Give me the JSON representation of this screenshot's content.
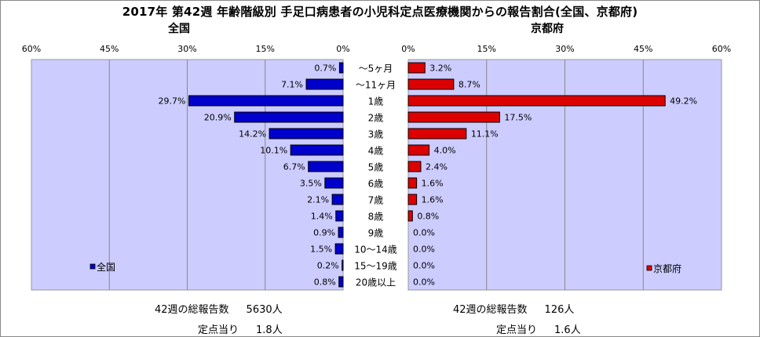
{
  "title": "2017年 第42週 年齢階級別 手足口病患者の小児科定点医療機関からの報告割合(全国、京都府)",
  "chart_data": [
    {
      "type": "bar",
      "orientation": "horizontal",
      "panel": "全国",
      "direction": "leftward",
      "xlim": [
        0,
        60
      ],
      "xticks": [
        "60%",
        "45%",
        "30%",
        "15%",
        "0%"
      ],
      "grid": true,
      "legend": "全国",
      "legend_position": "bottom-left",
      "color": "#0000cc",
      "categories": [
        "～5ヶ月",
        "～11ヶ月",
        "1歳",
        "2歳",
        "3歳",
        "4歳",
        "5歳",
        "6歳",
        "7歳",
        "8歳",
        "9歳",
        "10～14歳",
        "15～19歳",
        "20歳以上"
      ],
      "values": [
        0.7,
        7.1,
        29.7,
        20.9,
        14.2,
        10.1,
        6.7,
        3.5,
        2.1,
        1.4,
        0.9,
        1.5,
        0.2,
        0.8
      ],
      "labels": [
        "0.7%",
        "7.1%",
        "29.7%",
        "20.9%",
        "14.2%",
        "10.1%",
        "6.7%",
        "3.5%",
        "2.1%",
        "1.4%",
        "0.9%",
        "1.5%",
        "0.2%",
        "0.8%"
      ]
    },
    {
      "type": "bar",
      "orientation": "horizontal",
      "panel": "京都府",
      "direction": "rightward",
      "xlim": [
        0,
        60
      ],
      "xticks": [
        "0%",
        "15%",
        "30%",
        "45%",
        "60%"
      ],
      "grid": true,
      "legend": "京都府",
      "legend_position": "bottom-right",
      "color": "#dd0000",
      "categories": [
        "～5ヶ月",
        "～11ヶ月",
        "1歳",
        "2歳",
        "3歳",
        "4歳",
        "5歳",
        "6歳",
        "7歳",
        "8歳",
        "9歳",
        "10～14歳",
        "15～19歳",
        "20歳以上"
      ],
      "values": [
        3.2,
        8.7,
        49.2,
        17.5,
        11.1,
        4.0,
        2.4,
        1.6,
        1.6,
        0.8,
        0.0,
        0.0,
        0.0,
        0.0
      ],
      "labels": [
        "3.2%",
        "8.7%",
        "49.2%",
        "17.5%",
        "11.1%",
        "4.0%",
        "2.4%",
        "1.6%",
        "1.6%",
        "0.8%",
        "0.0%",
        "0.0%",
        "0.0%",
        "0.0%"
      ]
    }
  ],
  "footer": {
    "national_total_label": "42週の総報告数",
    "national_total_value": "5630人",
    "national_per_label": "定点当り",
    "national_per_value": "1.8人",
    "kyoto_total_label": "42週の総報告数",
    "kyoto_total_value": "126人",
    "kyoto_per_label": "定点当り",
    "kyoto_per_value": "1.6人"
  },
  "colors": {
    "plot_bg": "#ccccff",
    "national_bar": "#0000cc",
    "kyoto_bar": "#dd0000",
    "grid": "#888888"
  }
}
